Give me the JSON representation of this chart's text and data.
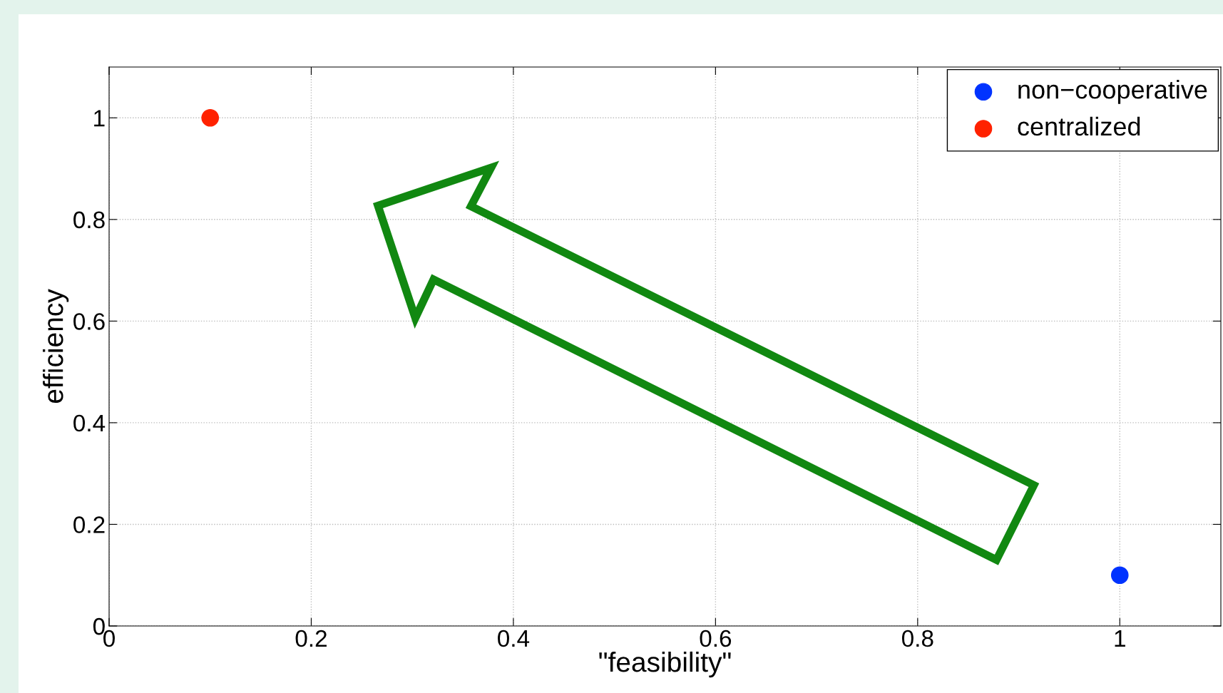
{
  "chart_data": {
    "type": "scatter",
    "xlabel": "\"feasibility\"",
    "ylabel": "efficiency",
    "series": [
      {
        "name": "non−cooperative",
        "color": "#0033ff",
        "x": [
          1.0
        ],
        "values": [
          0.1
        ]
      },
      {
        "name": "centralized",
        "color": "#ff2200",
        "x": [
          0.1
        ],
        "values": [
          1.0
        ]
      }
    ],
    "xlim": [
      0,
      1.1
    ],
    "ylim": [
      0,
      1.1
    ],
    "xticks": [
      0,
      0.2,
      0.4,
      0.6,
      0.8,
      1
    ],
    "yticks": [
      0,
      0.2,
      0.4,
      0.6,
      0.8,
      1
    ],
    "grid": true,
    "legend": "top right",
    "marker": "circle"
  }
}
